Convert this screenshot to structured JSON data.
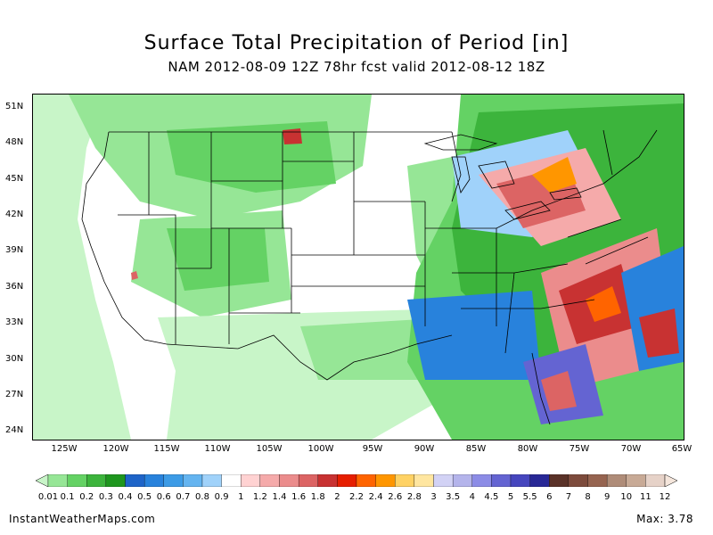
{
  "header": {
    "title": "Surface Total Precipitation of Period [in]",
    "subtitle": "NAM 2012-08-09 12Z 78hr fcst valid 2012-08-12 18Z"
  },
  "axes": {
    "lat_labels": [
      "51N",
      "48N",
      "45N",
      "42N",
      "39N",
      "36N",
      "33N",
      "30N",
      "27N",
      "24N"
    ],
    "lon_labels": [
      "125W",
      "120W",
      "115W",
      "110W",
      "105W",
      "100W",
      "95W",
      "90W",
      "85W",
      "80W",
      "75W",
      "70W",
      "65W"
    ]
  },
  "legend": {
    "labels": [
      "0.01",
      "0.1",
      "0.2",
      "0.3",
      "0.4",
      "0.5",
      "0.6",
      "0.7",
      "0.8",
      "0.9",
      "1",
      "1.2",
      "1.4",
      "1.6",
      "1.8",
      "2",
      "2.2",
      "2.4",
      "2.6",
      "2.8",
      "3",
      "3.5",
      "4",
      "4.5",
      "5",
      "5.5",
      "6",
      "7",
      "8",
      "9",
      "10",
      "11",
      "12"
    ],
    "colors": [
      "#c8f5c8",
      "#96e696",
      "#64d264",
      "#3cb43c",
      "#1e961e",
      "#1e64c8",
      "#2882dc",
      "#3c9be6",
      "#64b4f0",
      "#a0d2fa",
      "#ffffff",
      "#ffd2d2",
      "#f5aaaa",
      "#eb8c8c",
      "#dc6464",
      "#c83232",
      "#e61e00",
      "#ff6400",
      "#ff9600",
      "#ffd264",
      "#ffe6a0",
      "#d2d2f5",
      "#b4b4eb",
      "#8c8ce6",
      "#6464d2",
      "#4646be",
      "#282896",
      "#5a3228",
      "#7d4b3c",
      "#966450",
      "#af8c78",
      "#c8aa96",
      "#e6d2c8",
      "#f5e6dc"
    ]
  },
  "footer": {
    "site": "InstantWeatherMaps.com",
    "max_label": "Max:",
    "max_value": "3.78"
  }
}
